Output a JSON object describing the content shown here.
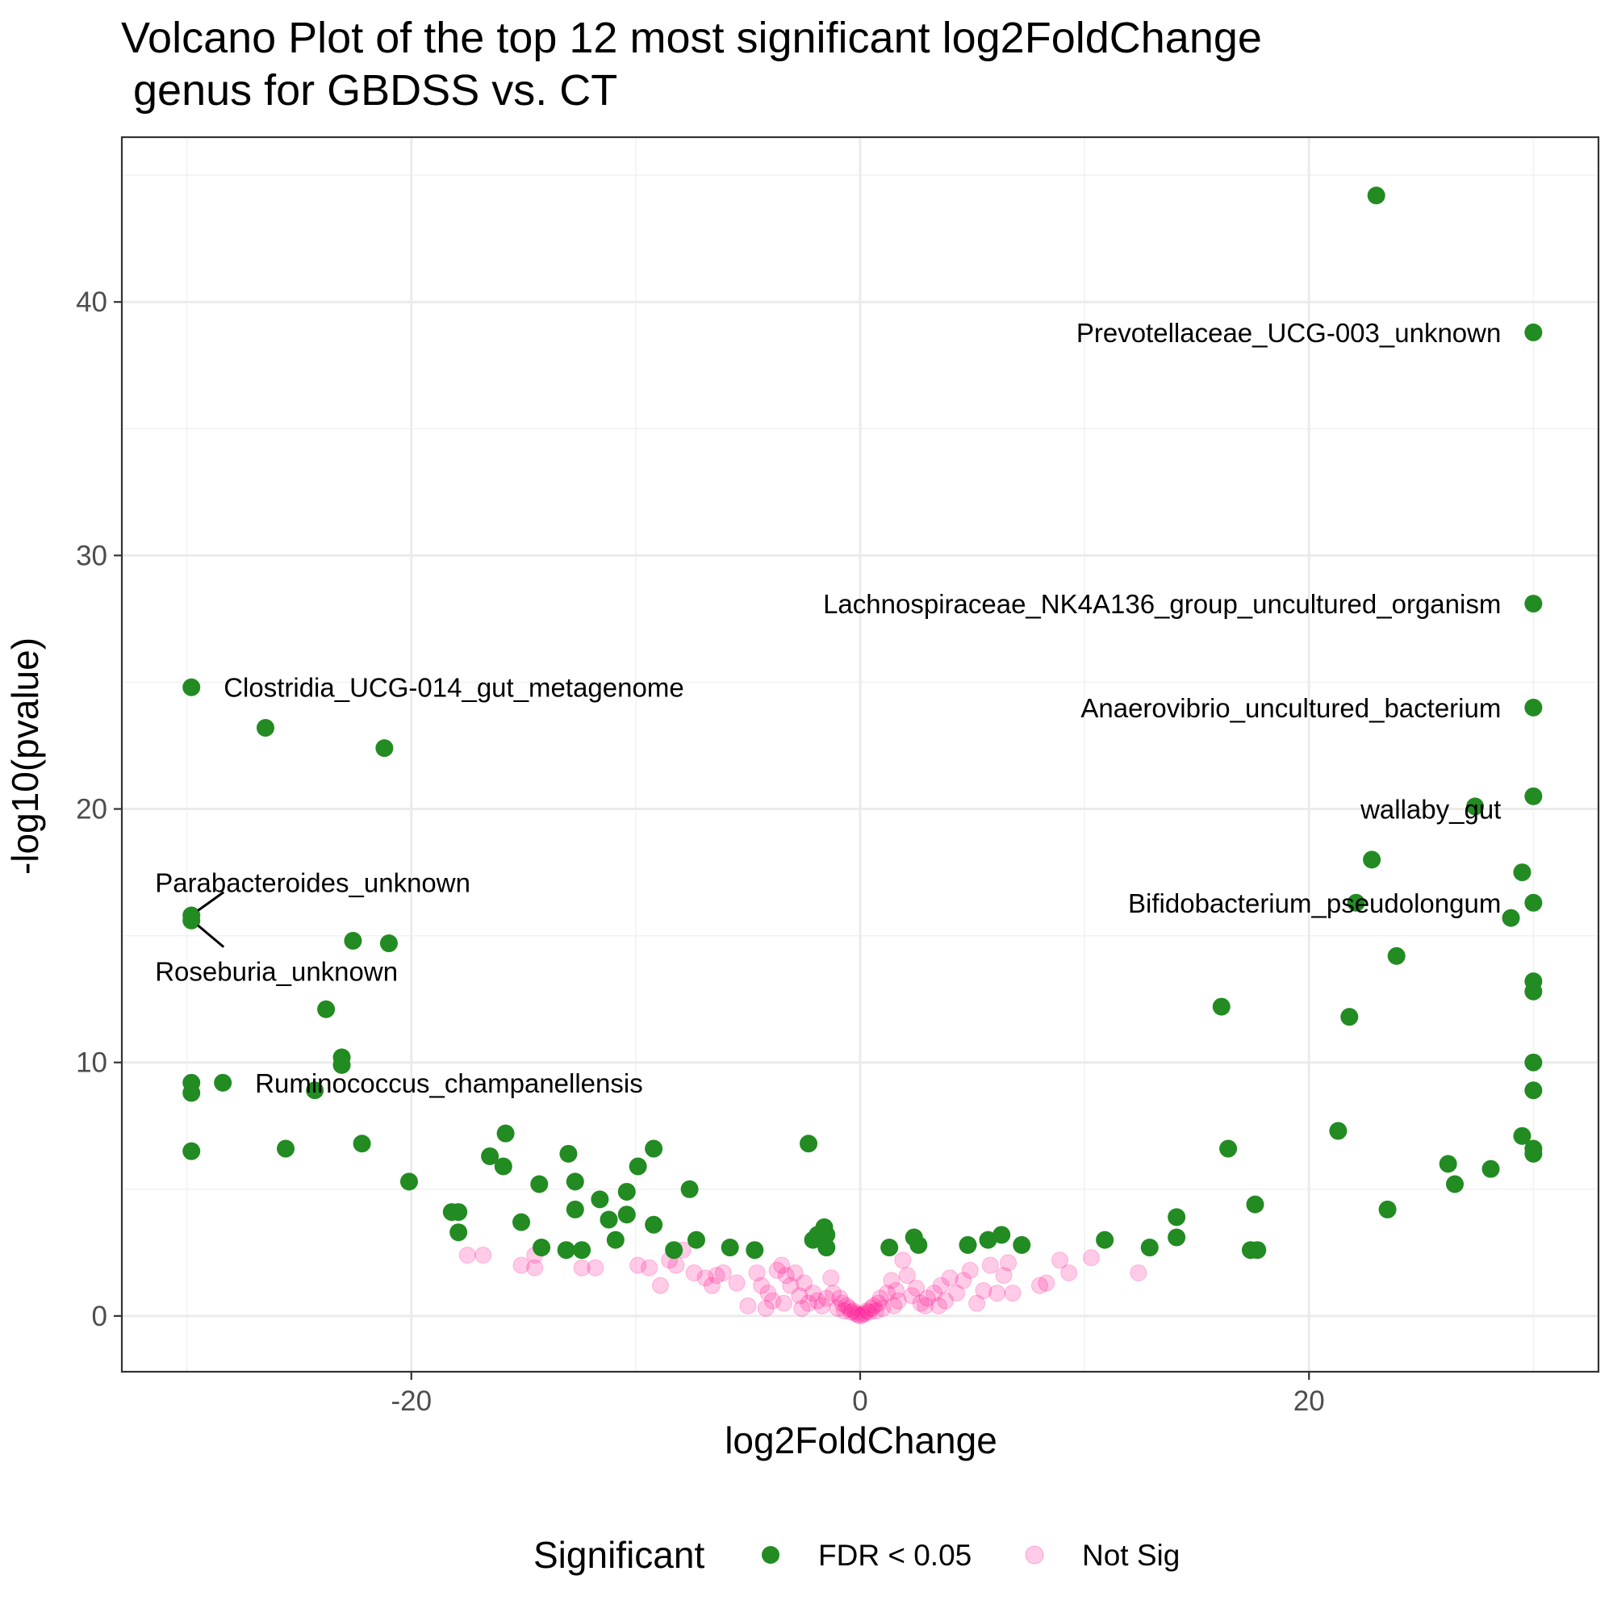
{
  "chart_data": {
    "type": "scatter",
    "title_line1": "Volcano Plot of the top 12 most significant log2FoldChange",
    "title_line2": " genus for GBDSS vs. CT",
    "xlabel": "log2FoldChange",
    "ylabel": "-log10(pvalue)",
    "xlim": [
      -32.9,
      32.9
    ],
    "ylim": [
      -2.2,
      46.5
    ],
    "x_ticks": [
      -20,
      0,
      20
    ],
    "x_tick_labels": [
      "-20",
      "0",
      "20"
    ],
    "y_ticks": [
      0,
      10,
      20,
      30,
      40
    ],
    "y_tick_labels": [
      "0",
      "10",
      "20",
      "30",
      "40"
    ],
    "grid": true,
    "legend_placement": "bottom",
    "legend": {
      "title": "Significant",
      "entries": [
        {
          "label": "FDR < 0.05",
          "color": "#228b22",
          "alpha": 1.0
        },
        {
          "label": "Not Sig",
          "color": "#ff1493",
          "alpha": 0.22
        }
      ]
    },
    "series": [
      {
        "name": "FDR < 0.05",
        "color": "#228b22",
        "points": [
          [
            23.0,
            44.2
          ],
          [
            30.0,
            38.8
          ],
          [
            30.0,
            28.1
          ],
          [
            30.0,
            24.0
          ],
          [
            30.0,
            20.5
          ],
          [
            27.4,
            20.1
          ],
          [
            22.8,
            18.0
          ],
          [
            29.5,
            17.5
          ],
          [
            30.0,
            16.3
          ],
          [
            22.1,
            16.3
          ],
          [
            29.0,
            15.7
          ],
          [
            23.9,
            14.2
          ],
          [
            30.0,
            13.2
          ],
          [
            30.0,
            12.8
          ],
          [
            16.1,
            12.2
          ],
          [
            21.8,
            11.8
          ],
          [
            30.0,
            10.0
          ],
          [
            30.0,
            8.9
          ],
          [
            21.3,
            7.3
          ],
          [
            29.5,
            7.1
          ],
          [
            30.0,
            6.6
          ],
          [
            30.0,
            6.4
          ],
          [
            16.4,
            6.6
          ],
          [
            26.2,
            6.0
          ],
          [
            26.5,
            5.2
          ],
          [
            28.1,
            5.8
          ],
          [
            23.5,
            4.2
          ],
          [
            17.6,
            4.4
          ],
          [
            14.1,
            3.9
          ],
          [
            14.1,
            3.1
          ],
          [
            17.4,
            2.6
          ],
          [
            17.7,
            2.6
          ],
          [
            12.9,
            2.7
          ],
          [
            10.9,
            3.0
          ],
          [
            7.2,
            2.8
          ],
          [
            6.3,
            3.2
          ],
          [
            5.7,
            3.0
          ],
          [
            4.8,
            2.8
          ],
          [
            2.4,
            3.1
          ],
          [
            2.6,
            2.8
          ],
          [
            1.3,
            2.7
          ],
          [
            -2.3,
            6.8
          ],
          [
            -1.6,
            3.5
          ],
          [
            -1.5,
            3.2
          ],
          [
            -2.1,
            3.0
          ],
          [
            -1.9,
            3.2
          ],
          [
            -1.5,
            2.7
          ],
          [
            -29.8,
            24.8
          ],
          [
            -26.5,
            23.2
          ],
          [
            -21.2,
            22.4
          ],
          [
            -29.8,
            15.8
          ],
          [
            -29.8,
            15.6
          ],
          [
            -22.6,
            14.8
          ],
          [
            -21.0,
            14.7
          ],
          [
            -23.8,
            12.1
          ],
          [
            -23.1,
            10.2
          ],
          [
            -23.1,
            9.9
          ],
          [
            -29.8,
            9.2
          ],
          [
            -29.8,
            8.8
          ],
          [
            -28.4,
            9.2
          ],
          [
            -24.3,
            8.9
          ],
          [
            -29.8,
            6.5
          ],
          [
            -25.6,
            6.6
          ],
          [
            -22.2,
            6.8
          ],
          [
            -20.1,
            5.3
          ],
          [
            -15.8,
            7.2
          ],
          [
            -16.5,
            6.3
          ],
          [
            -15.9,
            5.9
          ],
          [
            -14.3,
            5.2
          ],
          [
            -13.0,
            6.4
          ],
          [
            -12.7,
            5.3
          ],
          [
            -12.7,
            4.2
          ],
          [
            -11.6,
            4.6
          ],
          [
            -10.4,
            4.9
          ],
          [
            -10.4,
            4.0
          ],
          [
            -9.9,
            5.9
          ],
          [
            -9.2,
            6.6
          ],
          [
            -7.6,
            5.0
          ],
          [
            -18.2,
            4.1
          ],
          [
            -17.9,
            4.1
          ],
          [
            -17.9,
            3.3
          ],
          [
            -15.1,
            3.7
          ],
          [
            -14.2,
            2.7
          ],
          [
            -13.1,
            2.6
          ],
          [
            -12.4,
            2.6
          ],
          [
            -11.2,
            3.8
          ],
          [
            -10.9,
            3.0
          ],
          [
            -9.2,
            3.6
          ],
          [
            -8.3,
            2.6
          ],
          [
            -7.3,
            3.0
          ],
          [
            -5.8,
            2.7
          ],
          [
            -4.7,
            2.6
          ]
        ]
      },
      {
        "name": "Not Sig",
        "color": "#ff1493",
        "points": [
          [
            -17.5,
            2.4
          ],
          [
            -16.8,
            2.4
          ],
          [
            -15.1,
            2.0
          ],
          [
            -14.5,
            2.4
          ],
          [
            -14.5,
            1.9
          ],
          [
            -12.4,
            1.9
          ],
          [
            -11.8,
            1.9
          ],
          [
            -9.9,
            2.0
          ],
          [
            -9.4,
            1.9
          ],
          [
            -8.9,
            1.2
          ],
          [
            -8.5,
            2.2
          ],
          [
            -8.2,
            2.0
          ],
          [
            -7.9,
            2.6
          ],
          [
            -7.4,
            1.7
          ],
          [
            -6.9,
            1.5
          ],
          [
            -6.6,
            1.2
          ],
          [
            -6.4,
            1.6
          ],
          [
            -6.1,
            1.7
          ],
          [
            -5.5,
            1.3
          ],
          [
            -4.6,
            1.7
          ],
          [
            -4.4,
            1.2
          ],
          [
            -4.1,
            0.9
          ],
          [
            -3.9,
            0.6
          ],
          [
            -3.7,
            1.8
          ],
          [
            -3.5,
            2.0
          ],
          [
            -3.3,
            1.6
          ],
          [
            -3.1,
            1.2
          ],
          [
            -2.9,
            1.7
          ],
          [
            -2.7,
            0.8
          ],
          [
            -2.5,
            1.3
          ],
          [
            -2.3,
            0.5
          ],
          [
            -2.1,
            0.9
          ],
          [
            -1.9,
            0.6
          ],
          [
            -1.7,
            0.4
          ],
          [
            -1.5,
            0.7
          ],
          [
            -1.3,
            1.5
          ],
          [
            -1.2,
            0.9
          ],
          [
            -1.0,
            0.3
          ],
          [
            -0.9,
            0.7
          ],
          [
            -0.8,
            0.5
          ],
          [
            -0.7,
            0.2
          ],
          [
            -0.6,
            0.4
          ],
          [
            -0.5,
            0.3
          ],
          [
            -0.4,
            0.15
          ],
          [
            -0.3,
            0.2
          ],
          [
            -0.2,
            0.1
          ],
          [
            -0.1,
            0.05
          ],
          [
            0.0,
            0.0
          ],
          [
            0.1,
            0.05
          ],
          [
            0.2,
            0.1
          ],
          [
            0.3,
            0.2
          ],
          [
            0.4,
            0.15
          ],
          [
            0.5,
            0.3
          ],
          [
            0.6,
            0.4
          ],
          [
            0.7,
            0.2
          ],
          [
            0.8,
            0.5
          ],
          [
            0.9,
            0.7
          ],
          [
            1.0,
            0.3
          ],
          [
            1.2,
            0.9
          ],
          [
            1.4,
            1.4
          ],
          [
            1.6,
            1.0
          ],
          [
            1.7,
            0.6
          ],
          [
            1.9,
            2.2
          ],
          [
            2.1,
            1.6
          ],
          [
            2.3,
            0.8
          ],
          [
            2.5,
            1.1
          ],
          [
            2.7,
            0.5
          ],
          [
            3.0,
            0.7
          ],
          [
            3.3,
            0.9
          ],
          [
            3.6,
            1.2
          ],
          [
            3.8,
            0.6
          ],
          [
            4.0,
            1.5
          ],
          [
            4.3,
            0.9
          ],
          [
            4.6,
            1.4
          ],
          [
            4.9,
            1.8
          ],
          [
            5.2,
            0.5
          ],
          [
            5.5,
            1.0
          ],
          [
            5.8,
            2.0
          ],
          [
            6.1,
            0.9
          ],
          [
            6.4,
            1.6
          ],
          [
            6.6,
            2.1
          ],
          [
            6.8,
            0.9
          ],
          [
            8.0,
            1.2
          ],
          [
            8.3,
            1.3
          ],
          [
            8.9,
            2.2
          ],
          [
            9.3,
            1.7
          ],
          [
            10.3,
            2.3
          ],
          [
            12.4,
            1.7
          ],
          [
            -5.0,
            0.4
          ],
          [
            -4.2,
            0.3
          ],
          [
            -3.4,
            0.5
          ],
          [
            -2.6,
            0.3
          ],
          [
            1.5,
            0.4
          ],
          [
            2.9,
            0.4
          ],
          [
            3.5,
            0.4
          ]
        ]
      }
    ],
    "annotations": [
      {
        "text": "Prevotellaceae_UCG-003_unknown",
        "x": 30.0,
        "y": 38.8,
        "anchor": "end"
      },
      {
        "text": "Lachnospiraceae_NK4A136_group_uncultured_organism",
        "x": 30.0,
        "y": 28.1,
        "anchor": "end"
      },
      {
        "text": "Anaerovibrio_uncultured_bacterium",
        "x": 30.0,
        "y": 24.0,
        "anchor": "end"
      },
      {
        "text": "wallaby_gut",
        "x": 30.0,
        "y": 20.0,
        "anchor": "end"
      },
      {
        "text": "Bifidobacterium_pseudolongum",
        "x": 30.0,
        "y": 16.3,
        "anchor": "end"
      },
      {
        "text": "Clostridia_UCG-014_gut_metagenome",
        "x": -29.8,
        "y": 24.8,
        "anchor": "start"
      },
      {
        "text": "Parabacteroides_unknown",
        "x": -29.8,
        "y": 17.1,
        "anchor": "start",
        "leader_to": [
          -29.8,
          15.8
        ]
      },
      {
        "text": "Roseburia_unknown",
        "x": -29.8,
        "y": 13.6,
        "anchor": "start",
        "leader_to": [
          -29.8,
          15.6
        ]
      },
      {
        "text": "Ruminococcus_champanellensis",
        "x": -28.4,
        "y": 9.2,
        "anchor": "start"
      }
    ]
  }
}
